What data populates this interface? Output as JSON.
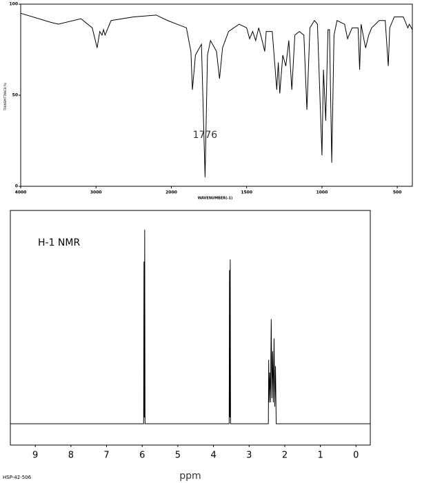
{
  "chart_data": [
    {
      "type": "line",
      "xscale": "piecewise",
      "xlabel": "WAVENUMBER(-1)",
      "ylabel": "TRANSMITTANCE(%)",
      "x": [
        4000,
        3600,
        3500,
        3200,
        3050,
        2985,
        2950,
        2920,
        2900,
        2880,
        2800,
        2500,
        2200,
        2050,
        1900,
        1870,
        1860,
        1840,
        1800,
        1776,
        1760,
        1740,
        1700,
        1680,
        1660,
        1620,
        1550,
        1500,
        1480,
        1460,
        1440,
        1420,
        1400,
        1380,
        1370,
        1330,
        1300,
        1290,
        1280,
        1260,
        1240,
        1220,
        1200,
        1180,
        1150,
        1120,
        1100,
        1080,
        1050,
        1030,
        1000,
        990,
        975,
        960,
        950,
        935,
        920,
        900,
        850,
        830,
        800,
        760,
        750,
        740,
        720,
        710,
        690,
        670,
        620,
        580,
        560,
        550,
        520,
        460,
        430,
        420,
        400
      ],
      "series": [
        {
          "color": "#000000",
          "values": [
            95,
            90,
            89,
            92,
            87,
            76,
            85,
            83,
            86,
            83,
            91,
            93,
            94,
            91,
            87,
            74,
            53,
            72,
            78,
            5,
            72,
            80,
            74,
            59,
            76,
            85,
            89,
            87,
            81,
            85,
            80,
            87,
            81,
            74,
            85,
            85,
            53,
            68,
            51,
            72,
            66,
            80,
            53,
            83,
            85,
            83,
            42,
            87,
            91,
            89,
            17,
            64,
            36,
            86,
            86,
            13,
            83,
            91,
            89,
            81,
            87,
            87,
            64,
            89,
            80,
            76,
            83,
            87,
            91,
            91,
            66,
            87,
            93,
            93,
            87,
            89,
            86
          ]
        }
      ],
      "xlim": [
        4000,
        400
      ],
      "xticks": [
        4000,
        3000,
        2000,
        1500,
        1000,
        500
      ],
      "ylim": [
        0,
        100
      ],
      "yticks": [
        0,
        50,
        100
      ],
      "annotations": [
        {
          "text": "1776",
          "x": 1776,
          "y": 28
        }
      ]
    },
    {
      "type": "line",
      "xscale": "linear",
      "title": "H-1 NMR",
      "xlabel": "ppm",
      "footnote": "HSP-42-506",
      "x": [
        9.7,
        6.0,
        5.96,
        5.95,
        5.94,
        5.93,
        5.92,
        3.6,
        3.56,
        3.55,
        3.54,
        3.53,
        3.52,
        2.5,
        2.46,
        2.45,
        2.44,
        2.42,
        2.4,
        2.38,
        2.36,
        2.34,
        2.32,
        2.3,
        2.28,
        2.26,
        2.24,
        -0.4
      ],
      "series": [
        {
          "color": "#000000",
          "values": [
            0,
            0,
            0,
            76,
            3,
            91,
            0,
            0,
            0,
            72,
            3,
            77,
            0,
            0,
            0,
            30,
            10,
            24,
            10,
            49,
            12,
            34,
            10,
            40,
            8,
            27,
            0,
            0
          ]
        }
      ],
      "xlim": [
        9.7,
        -0.4
      ],
      "xticks": [
        9,
        8,
        7,
        6,
        5,
        4,
        3,
        2,
        1,
        0
      ],
      "ylim": [
        -10,
        100
      ]
    }
  ]
}
